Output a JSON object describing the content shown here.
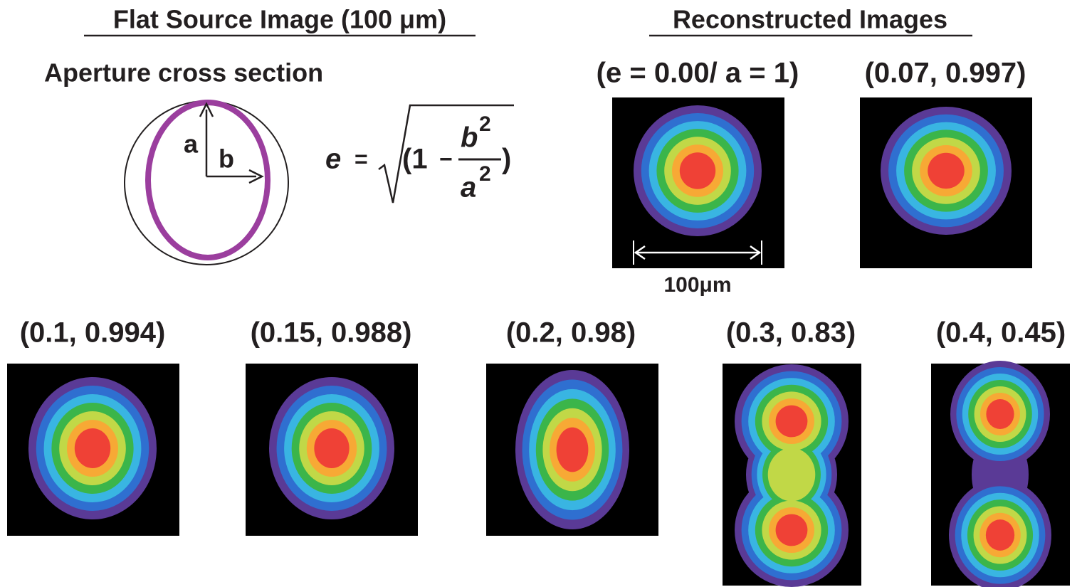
{
  "header": {
    "left_title": "Flat Source Image (100 μm)",
    "right_title": "Reconstructed Images"
  },
  "aperture": {
    "title": "Aperture cross section",
    "axis_a": "a",
    "axis_b": "b"
  },
  "formula": {
    "lhs": "e",
    "eq": "=",
    "open": "(1",
    "minus": "−",
    "num": "b",
    "num_exp": "2",
    "den": "a",
    "den_exp": "2",
    "close": ")"
  },
  "images": [
    {
      "label": "(e = 0.00/ a = 1)"
    },
    {
      "label": "(0.07, 0.997)"
    },
    {
      "label": "(0.1, 0.994)"
    },
    {
      "label": "(0.15, 0.988)"
    },
    {
      "label": "(0.2, 0.98)"
    },
    {
      "label": "(0.3, 0.83)"
    },
    {
      "label": "(0.4, 0.45)"
    }
  ],
  "scale_bar": "100μm"
}
